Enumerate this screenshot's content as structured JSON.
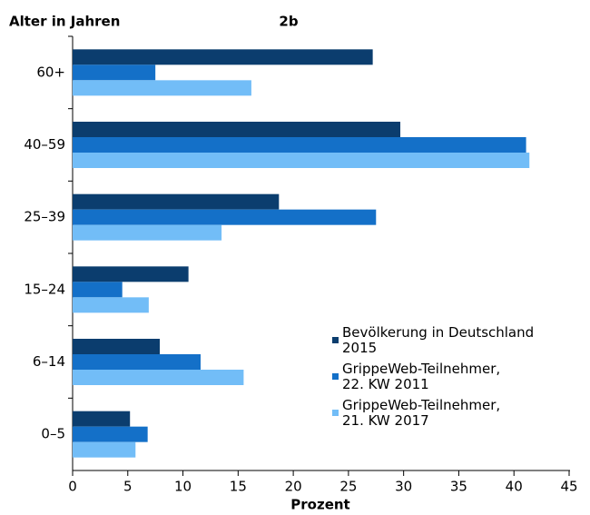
{
  "chart_data": {
    "type": "hbar",
    "title": "2b",
    "y_label": "Alter in Jahren",
    "x_label": "Prozent",
    "categories": [
      "60+",
      "40–59",
      "25–39",
      "15–24",
      "6–14",
      "0–5"
    ],
    "series": [
      {
        "name": "Bevölkerung in Deutschland\n2015",
        "color": "#0b3d6e",
        "values": [
          27.2,
          29.7,
          18.7,
          10.5,
          7.9,
          5.2
        ]
      },
      {
        "name": "GrippeWeb-Teilnehmer,\n22. KW 2011",
        "color": "#1470c8",
        "values": [
          7.5,
          41.1,
          27.5,
          4.5,
          11.6,
          6.8
        ]
      },
      {
        "name": "GrippeWeb-Teilnehmer,\n21. KW 2017",
        "color": "#72bdf7",
        "values": [
          16.2,
          41.4,
          13.5,
          6.9,
          15.5,
          5.7
        ]
      }
    ],
    "xlim": [
      0,
      45
    ],
    "xticks": [
      0,
      5,
      10,
      15,
      20,
      25,
      30,
      35,
      40,
      45
    ],
    "grid": false
  }
}
